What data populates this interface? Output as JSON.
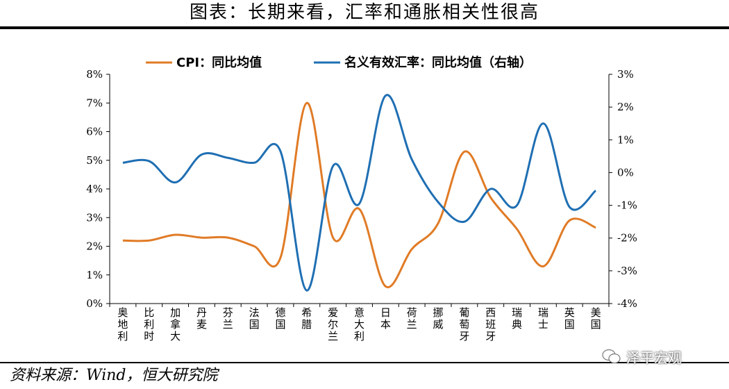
{
  "title": "图表：长期来看，汇率和通胀相关性很高",
  "source": "资料来源：Wind，恒大研究院",
  "watermark": "泽平宏观",
  "colors": {
    "cpi": "#E07B26",
    "neer": "#1F6FB3"
  },
  "chart_data": {
    "type": "line",
    "categories": [
      "奥地利",
      "比利时",
      "加拿大",
      "丹麦",
      "芬兰",
      "法国",
      "德国",
      "希腊",
      "爱尔兰",
      "意大利",
      "日本",
      "荷兰",
      "挪威",
      "葡萄牙",
      "西班牙",
      "瑞典",
      "瑞士",
      "英国",
      "美国"
    ],
    "series": [
      {
        "name": "CPI：同比均值",
        "axis": "left",
        "unit": "%",
        "values": [
          2.2,
          2.2,
          2.4,
          2.3,
          2.3,
          2.0,
          1.6,
          7.0,
          2.3,
          3.3,
          0.6,
          1.9,
          2.8,
          5.3,
          3.7,
          2.6,
          1.3,
          2.9,
          2.65
        ]
      },
      {
        "name": "名义有效汇率：同比均值（右轴）",
        "axis": "right",
        "unit": "%",
        "values": [
          0.3,
          0.35,
          -0.3,
          0.55,
          0.45,
          0.3,
          0.65,
          -3.6,
          0.2,
          -0.95,
          2.35,
          0.4,
          -0.9,
          -1.5,
          -0.5,
          -1.0,
          1.5,
          -1.05,
          -0.55
        ]
      }
    ],
    "y_left": {
      "min": 0,
      "max": 8,
      "step": 1,
      "tick_labels": [
        "0%",
        "1%",
        "2%",
        "3%",
        "4%",
        "5%",
        "6%",
        "7%",
        "8%"
      ]
    },
    "y_right": {
      "min": -4,
      "max": 3,
      "step": 1,
      "tick_labels": [
        "-4%",
        "-3%",
        "-2%",
        "-1%",
        "0%",
        "1%",
        "2%",
        "3%"
      ]
    },
    "legend_position": "top-center",
    "grid": false
  }
}
